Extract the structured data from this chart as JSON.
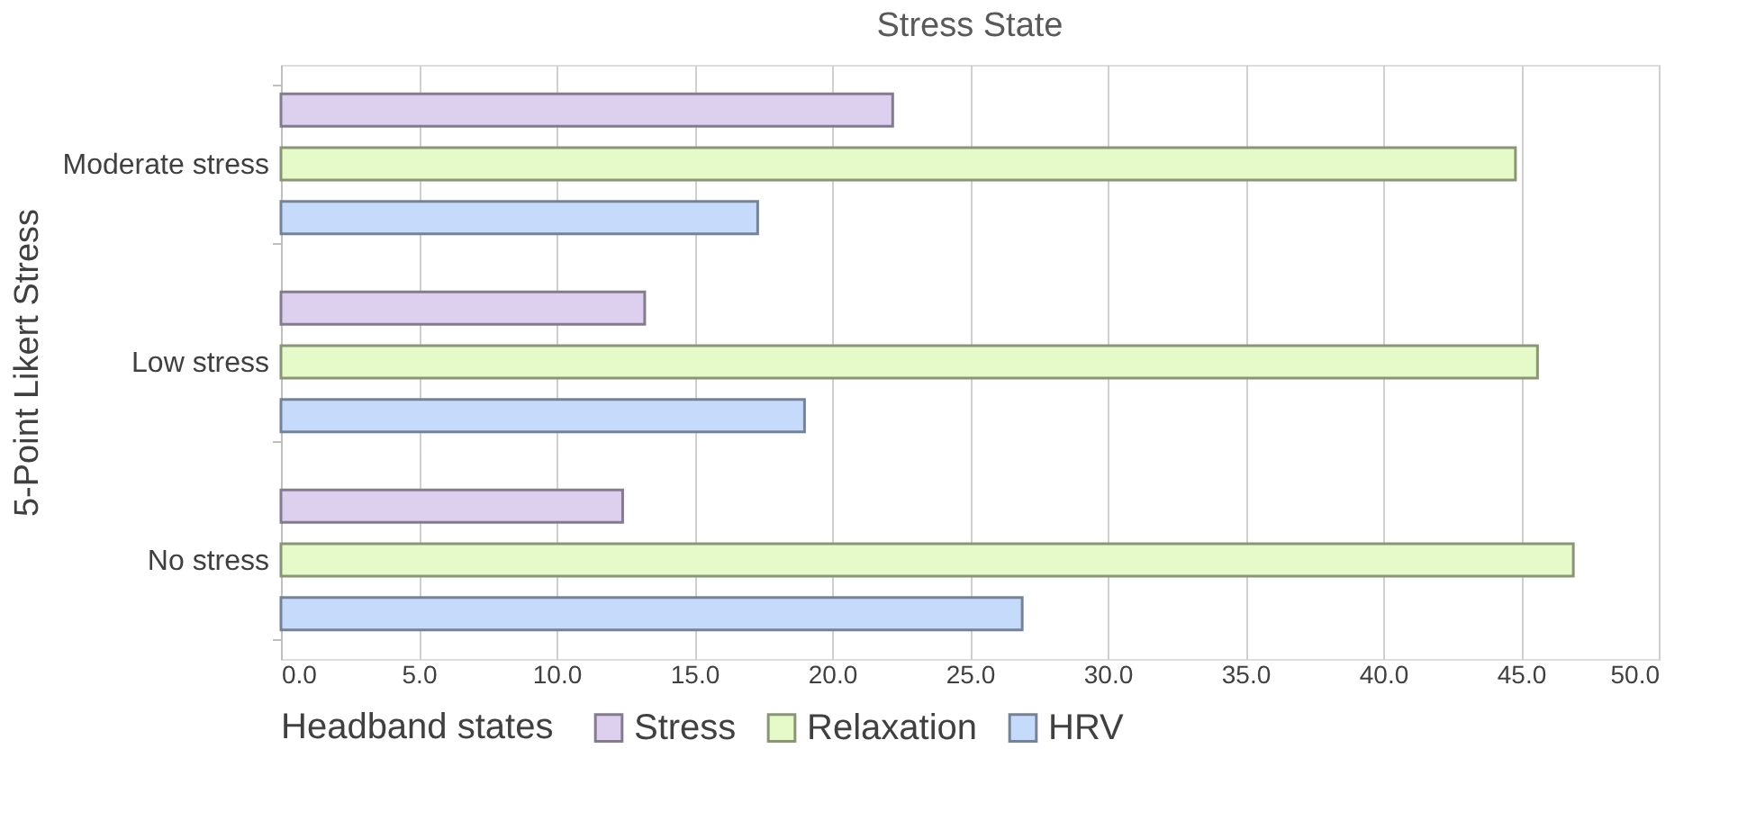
{
  "chart_data": {
    "type": "bar",
    "orientation": "horizontal",
    "title": "Stress State",
    "ylabel": "5-Point Likert Stress",
    "legend_title": "Headband states",
    "categories": [
      "Moderate stress",
      "Low stress",
      "No stress"
    ],
    "series": [
      {
        "name": "Stress",
        "color": "#ddd0ee",
        "values": [
          22.2,
          13.2,
          12.4
        ]
      },
      {
        "name": "Relaxation",
        "color": "#e6f9c8",
        "values": [
          44.8,
          45.6,
          46.9
        ]
      },
      {
        "name": "HRV",
        "color": "#c6dbfb",
        "values": [
          17.3,
          19.0,
          26.9
        ]
      }
    ],
    "xlim": [
      0,
      50
    ],
    "xticks": [
      {
        "value": 0,
        "label": "0.0"
      },
      {
        "value": 5,
        "label": "5.0"
      },
      {
        "value": 10,
        "label": "10.0"
      },
      {
        "value": 15,
        "label": "15.0"
      },
      {
        "value": 20,
        "label": "20.0"
      },
      {
        "value": 25,
        "label": "25.0"
      },
      {
        "value": 30,
        "label": "30.0"
      },
      {
        "value": 35,
        "label": "35.0"
      },
      {
        "value": 40,
        "label": "40.0"
      },
      {
        "value": 45,
        "label": "45.0"
      },
      {
        "value": 50,
        "label": "50.0"
      }
    ],
    "grid": "x",
    "legend": "bottom"
  }
}
